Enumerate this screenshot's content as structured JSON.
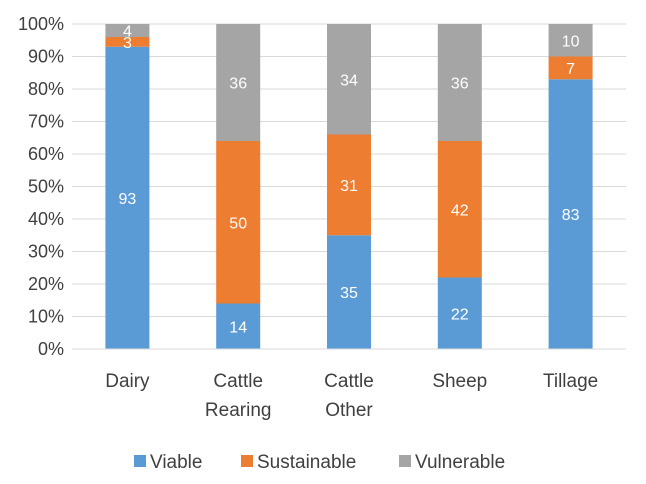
{
  "chart_data": {
    "type": "bar",
    "stacked": true,
    "title": "",
    "xlabel": "",
    "ylabel": "",
    "ylim": [
      0,
      100
    ],
    "y_ticks": [
      "0%",
      "10%",
      "20%",
      "30%",
      "40%",
      "50%",
      "60%",
      "70%",
      "80%",
      "90%",
      "100%"
    ],
    "grid": true,
    "legend_position": "bottom",
    "categories": [
      [
        "Dairy"
      ],
      [
        "Cattle",
        "Rearing"
      ],
      [
        "Cattle",
        "Other"
      ],
      [
        "Sheep"
      ],
      [
        "Tillage"
      ]
    ],
    "series": [
      {
        "name": "Viable",
        "color": "#5B9BD5",
        "values": [
          93,
          14,
          35,
          22,
          83
        ]
      },
      {
        "name": "Sustainable",
        "color": "#ED7D31",
        "values": [
          3,
          50,
          31,
          42,
          7
        ]
      },
      {
        "name": "Vulnerable",
        "color": "#A5A5A5",
        "values": [
          4,
          36,
          34,
          36,
          10
        ]
      }
    ]
  }
}
